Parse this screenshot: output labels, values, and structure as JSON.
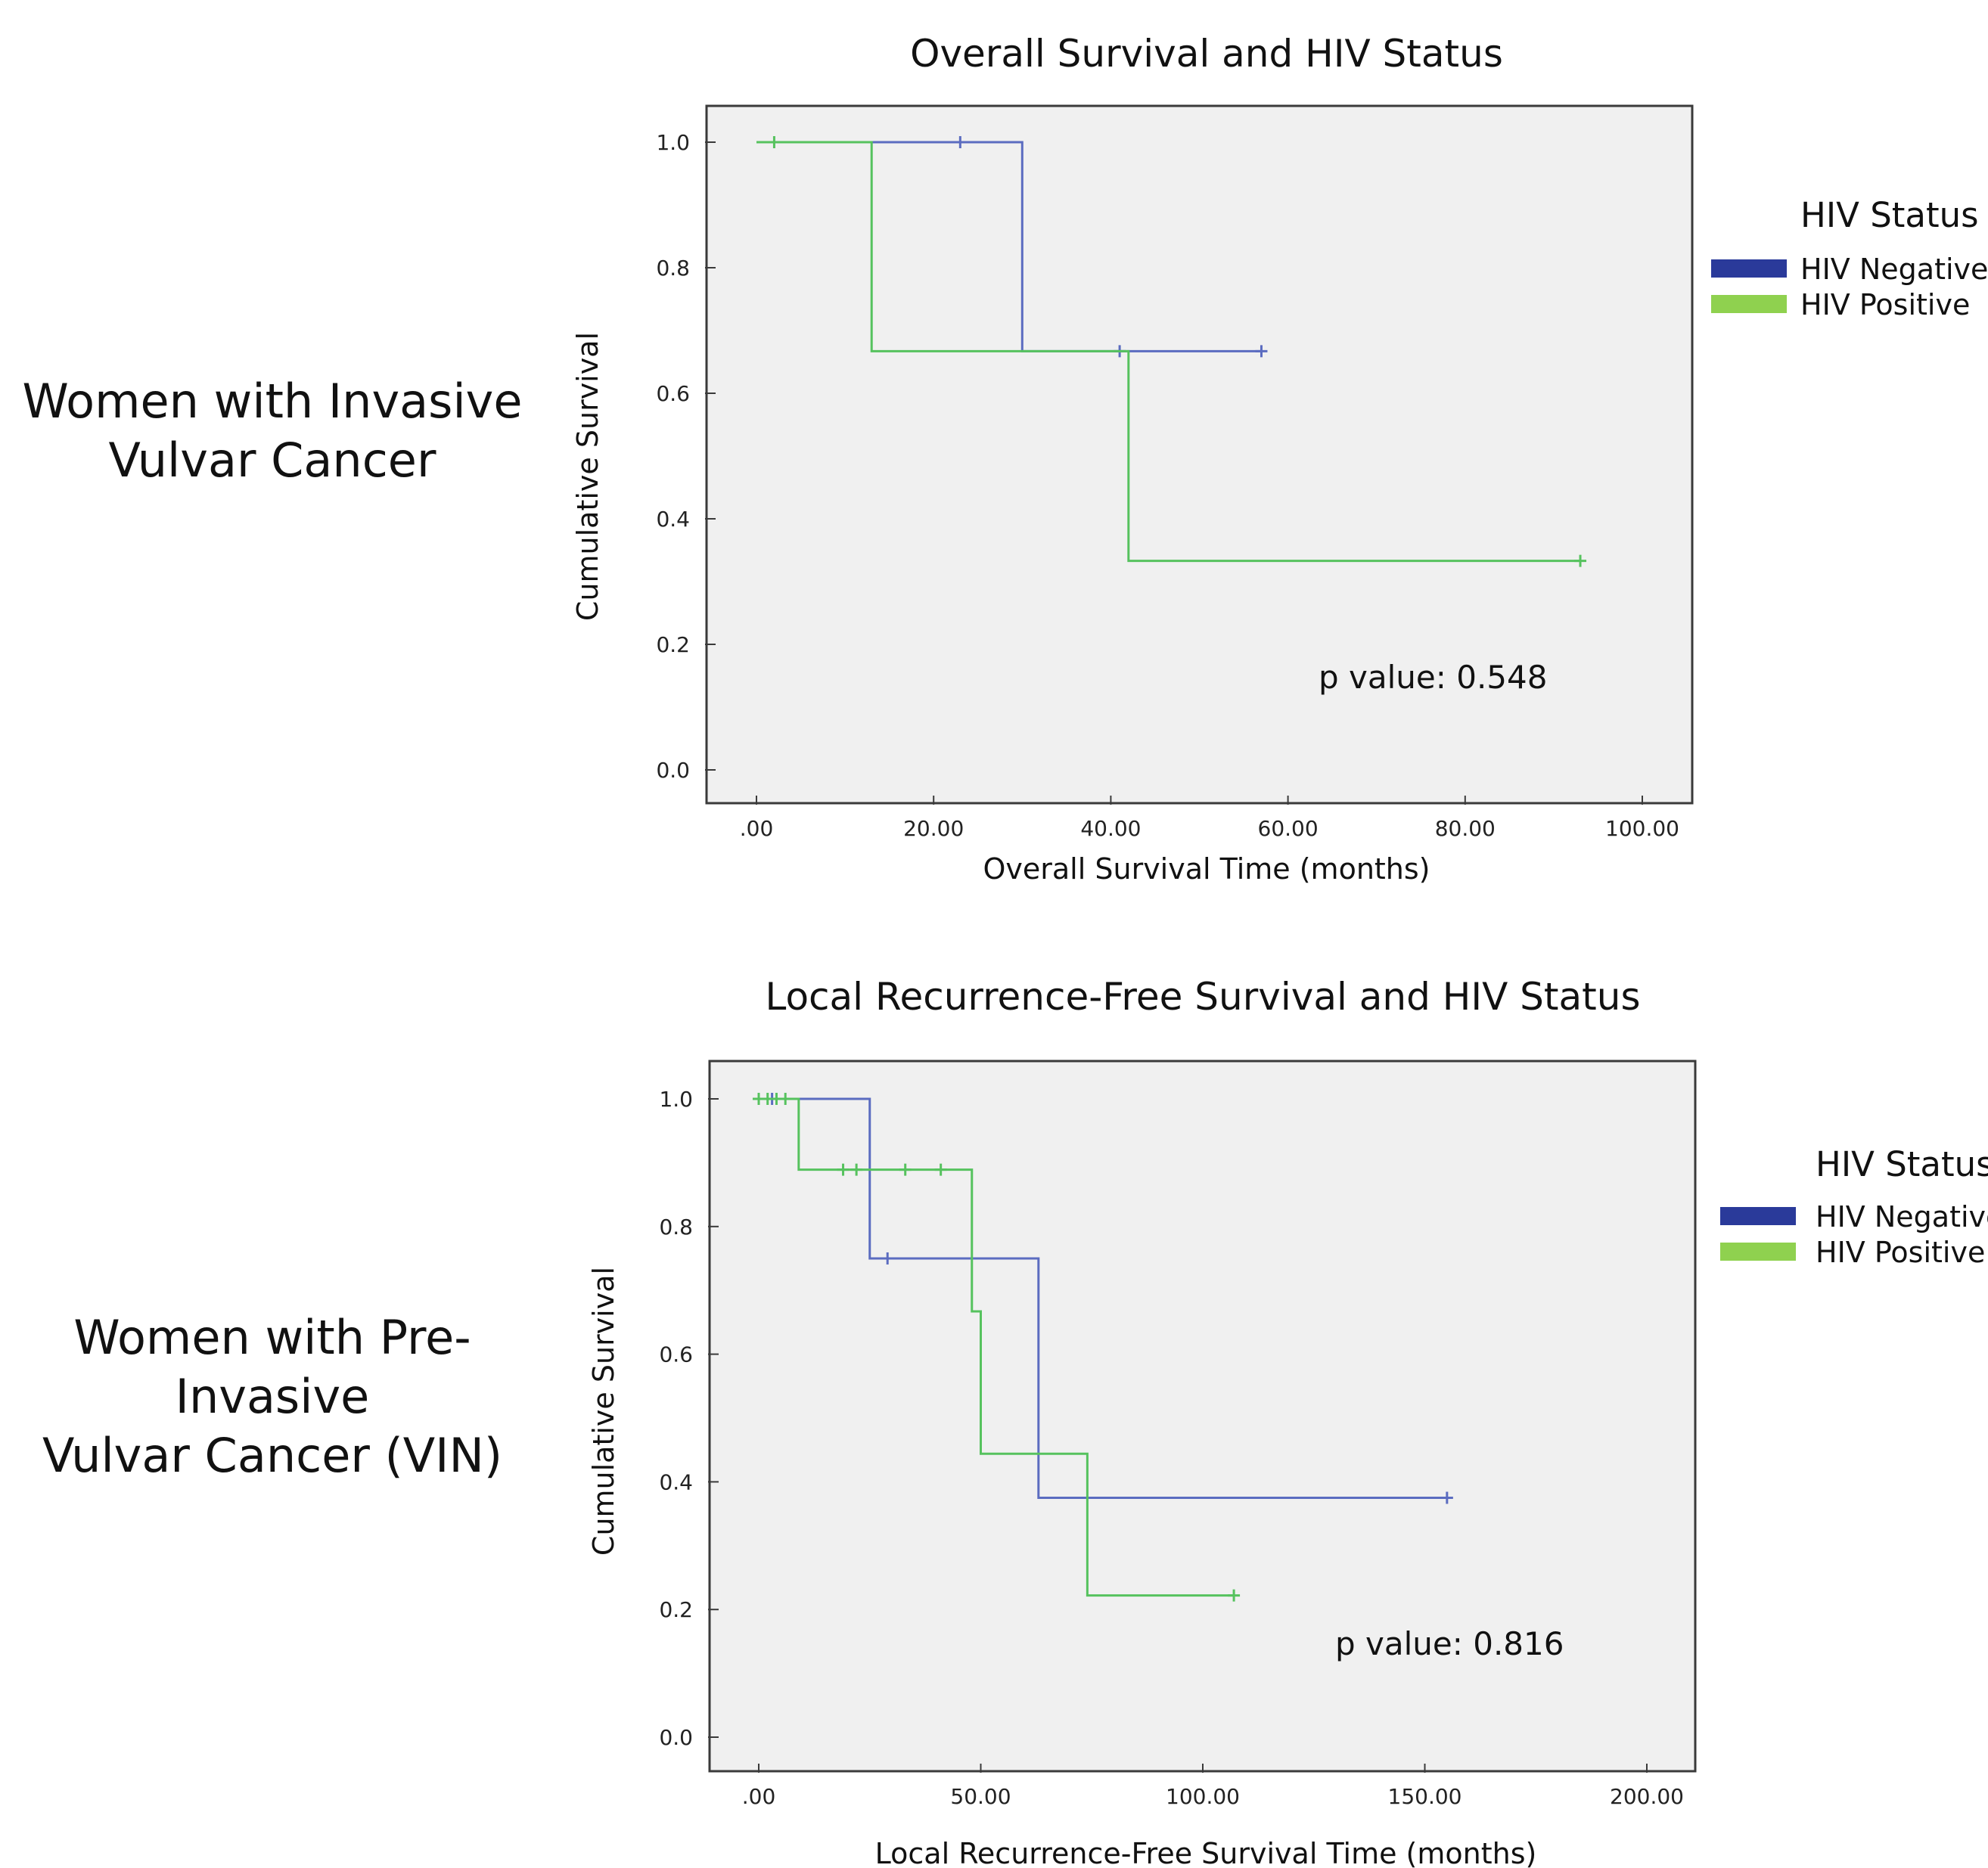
{
  "rows": [
    {
      "label_line1": "Women with Invasive",
      "label_line2": "Vulvar Cancer"
    },
    {
      "label_line1": "Women with Pre-Invasive",
      "label_line2": "Vulvar Cancer (VIN)"
    }
  ],
  "chart_data": [
    {
      "type": "line",
      "step": true,
      "title": "Overall Survival and HIV Status",
      "xlabel": "Overall Survival Time (months)",
      "ylabel": "Cumulative Survival",
      "xlim": [
        0,
        100
      ],
      "ylim": [
        0,
        1
      ],
      "x_ticks": [
        0,
        20,
        40,
        60,
        80,
        100
      ],
      "x_tick_labels": [
        ".00",
        "20.00",
        "40.00",
        "60.00",
        "80.00",
        "100.00"
      ],
      "y_ticks": [
        0,
        0.2,
        0.4,
        0.6,
        0.8,
        1.0
      ],
      "y_tick_labels": [
        "0.0",
        "0.2",
        "0.4",
        "0.6",
        "0.8",
        "1.0"
      ],
      "grid": false,
      "legend_title": "HIV Status",
      "legend_position": "right",
      "annotation": "p value: 0.548",
      "series": [
        {
          "name": "HIV Negative",
          "color": "#5b6cc0",
          "legend_color": "#2a3a9a",
          "steps": [
            [
              0,
              1.0
            ],
            [
              30,
              0.667
            ],
            [
              57,
              0.667
            ]
          ],
          "censored": [
            [
              23,
              1.0
            ],
            [
              41,
              0.667
            ],
            [
              57,
              0.667
            ]
          ]
        },
        {
          "name": "HIV Positive",
          "color": "#56c25e",
          "legend_color": "#8fd14f",
          "steps": [
            [
              0,
              1.0
            ],
            [
              13,
              0.667
            ],
            [
              42,
              0.333
            ],
            [
              93,
              0.333
            ]
          ],
          "censored": [
            [
              2,
              1.0
            ],
            [
              93,
              0.333
            ]
          ]
        }
      ]
    },
    {
      "type": "line",
      "step": true,
      "title": "Local Recurrence-Free Survival and HIV Status",
      "xlabel": "Local Recurrence-Free Survival Time (months)",
      "ylabel": "Cumulative Survival",
      "xlim": [
        0,
        200
      ],
      "ylim": [
        0,
        1
      ],
      "x_ticks": [
        0,
        50,
        100,
        150,
        200
      ],
      "x_tick_labels": [
        ".00",
        "50.00",
        "100.00",
        "150.00",
        "200.00"
      ],
      "y_ticks": [
        0,
        0.2,
        0.4,
        0.6,
        0.8,
        1.0
      ],
      "y_tick_labels": [
        "0.0",
        "0.2",
        "0.4",
        "0.6",
        "0.8",
        "1.0"
      ],
      "grid": false,
      "legend_title": "HIV Status",
      "legend_position": "right",
      "annotation": "p value: 0.816",
      "series": [
        {
          "name": "HIV Negative",
          "color": "#5b6cc0",
          "legend_color": "#2a3a9a",
          "steps": [
            [
              0,
              1.0
            ],
            [
              25,
              0.75
            ],
            [
              63,
              0.375
            ],
            [
              155,
              0.375
            ]
          ],
          "censored": [
            [
              3,
              1.0
            ],
            [
              29,
              0.75
            ],
            [
              155,
              0.375
            ]
          ]
        },
        {
          "name": "HIV Positive",
          "color": "#56c25e",
          "legend_color": "#8fd14f",
          "steps": [
            [
              0,
              1.0
            ],
            [
              9,
              0.889
            ],
            [
              48,
              0.667
            ],
            [
              50,
              0.444
            ],
            [
              74,
              0.222
            ],
            [
              107,
              0.222
            ]
          ],
          "censored": [
            [
              0,
              1.0
            ],
            [
              2,
              1.0
            ],
            [
              4,
              1.0
            ],
            [
              6,
              1.0
            ],
            [
              19,
              0.889
            ],
            [
              22,
              0.889
            ],
            [
              33,
              0.889
            ],
            [
              41,
              0.889
            ],
            [
              107,
              0.222
            ]
          ]
        }
      ]
    }
  ]
}
